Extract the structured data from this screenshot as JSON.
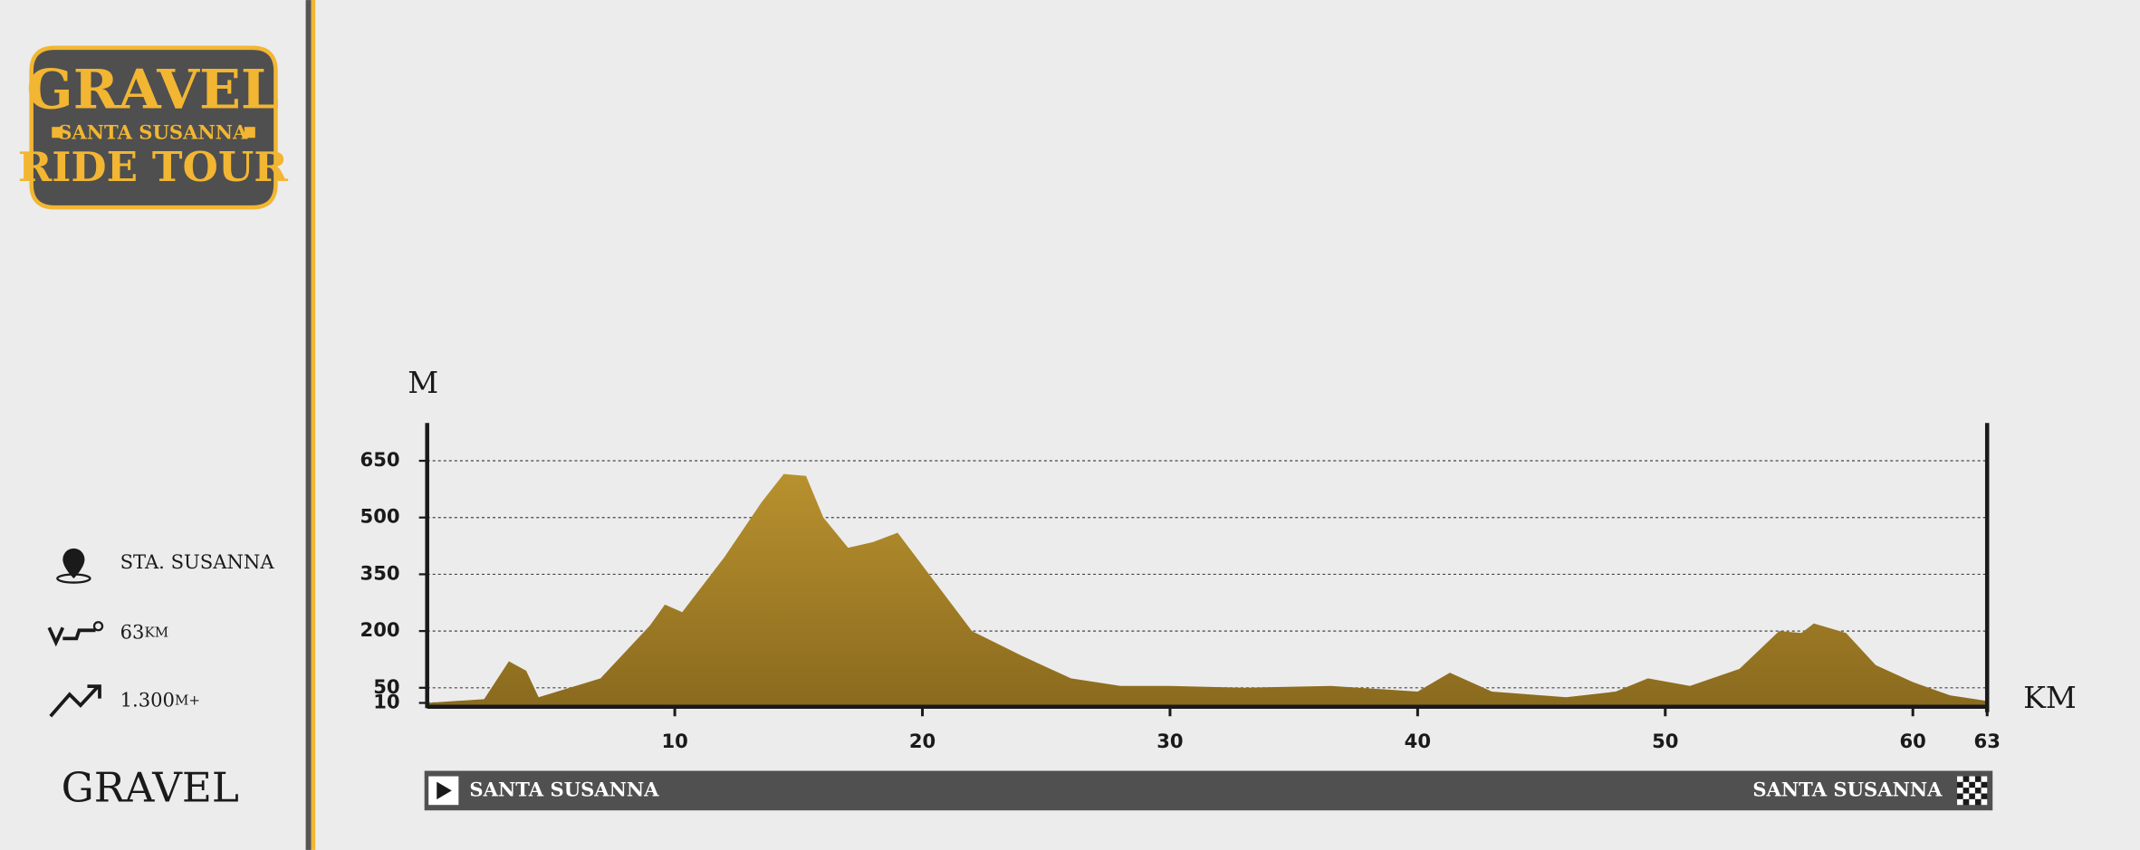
{
  "logo": {
    "line1": "GRAVEL",
    "line2": "SANTA SUSANNA",
    "line3": "RIDE TOUR"
  },
  "info": {
    "location": "STA. SUSANNA",
    "distance_value": "63",
    "distance_unit": "KM",
    "elevation_value": "1.300",
    "elevation_unit": "M+"
  },
  "category": "GRAVEL",
  "route": {
    "start": "SANTA SUSANNA",
    "finish": "SANTA SUSANNA"
  },
  "chart_data": {
    "type": "area",
    "y_label": "M",
    "x_label": "KM",
    "color": "#b8912e",
    "x": [
      0,
      2.3,
      3.3,
      4,
      4.5,
      7,
      9,
      9.6,
      10.3,
      12,
      13.5,
      14.4,
      15.3,
      16,
      17,
      18,
      19,
      20.5,
      22,
      24,
      26,
      28,
      30,
      33,
      36.5,
      40,
      41.3,
      43,
      46,
      48,
      49.3,
      51,
      53,
      54.6,
      55.5,
      56,
      57.3,
      58.5,
      60,
      61.5,
      63
    ],
    "values": [
      10,
      20,
      120,
      95,
      25,
      75,
      215,
      270,
      250,
      395,
      540,
      615,
      610,
      500,
      420,
      435,
      460,
      330,
      200,
      135,
      75,
      55,
      55,
      50,
      55,
      40,
      90,
      40,
      25,
      40,
      75,
      55,
      100,
      200,
      195,
      220,
      195,
      110,
      65,
      30,
      15
    ],
    "xlim": [
      0,
      63
    ],
    "xticks": [
      10,
      20,
      30,
      40,
      50,
      60,
      63
    ],
    "ylim": [
      0,
      750
    ],
    "yticks": [
      10,
      50,
      200,
      350,
      500,
      650
    ],
    "grid": true
  }
}
